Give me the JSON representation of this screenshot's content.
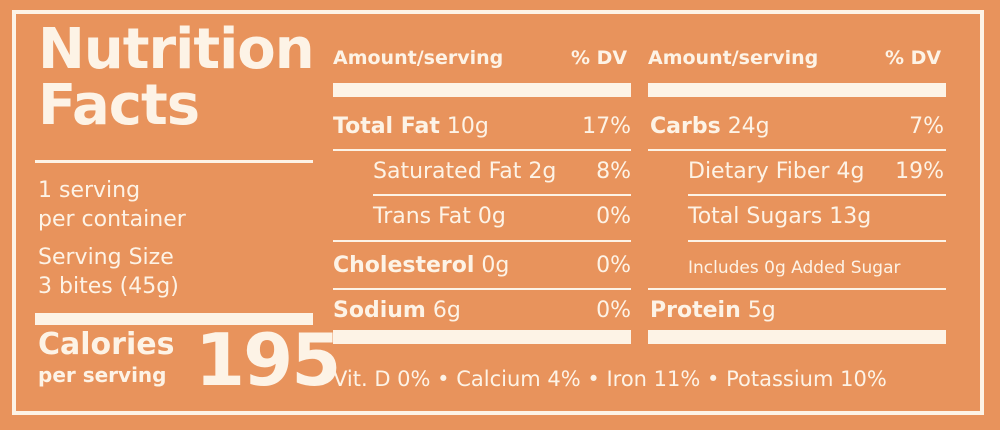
{
  "title": {
    "line1": "Nutrition",
    "line2": "Facts"
  },
  "serving": {
    "count_line1": "1 serving",
    "count_line2": "per container",
    "size_line1": "Serving Size",
    "size_line2": "3 bites (45g)"
  },
  "calories": {
    "label": "Calories",
    "sub": "per serving",
    "value": "195"
  },
  "headers": {
    "left_amount": "Amount/serving",
    "left_dv": "% DV",
    "right_amount": "Amount/serving",
    "right_dv": "% DV"
  },
  "left_rows": [
    {
      "name": "Total Fat",
      "amount": "10g",
      "dv": "17%"
    },
    {
      "name": "Saturated Fat",
      "amount": "2g",
      "dv": "8%"
    },
    {
      "name": "Trans Fat",
      "amount": "0g",
      "dv": "0%"
    },
    {
      "name": "Cholesterol",
      "amount": "0g",
      "dv": "0%"
    },
    {
      "name": "Sodium",
      "amount": "6g",
      "dv": "0%"
    }
  ],
  "right_rows": [
    {
      "name": "Carbs",
      "amount": "24g",
      "dv": "7%"
    },
    {
      "name": "Dietary Fiber",
      "amount": "4g",
      "dv": "19%"
    },
    {
      "name": "Total Sugars",
      "amount": "13g",
      "dv": ""
    },
    {
      "name": "Includes 0g Added Sugar",
      "amount": "",
      "dv": ""
    },
    {
      "name": "Protein",
      "amount": "5g",
      "dv": ""
    }
  ],
  "footer": "Vit. D 0% • Calcium 4% • Iron 11% • Potassium 10%",
  "colors": {
    "background": "#e8935c",
    "ink": "#fdf3e6"
  }
}
